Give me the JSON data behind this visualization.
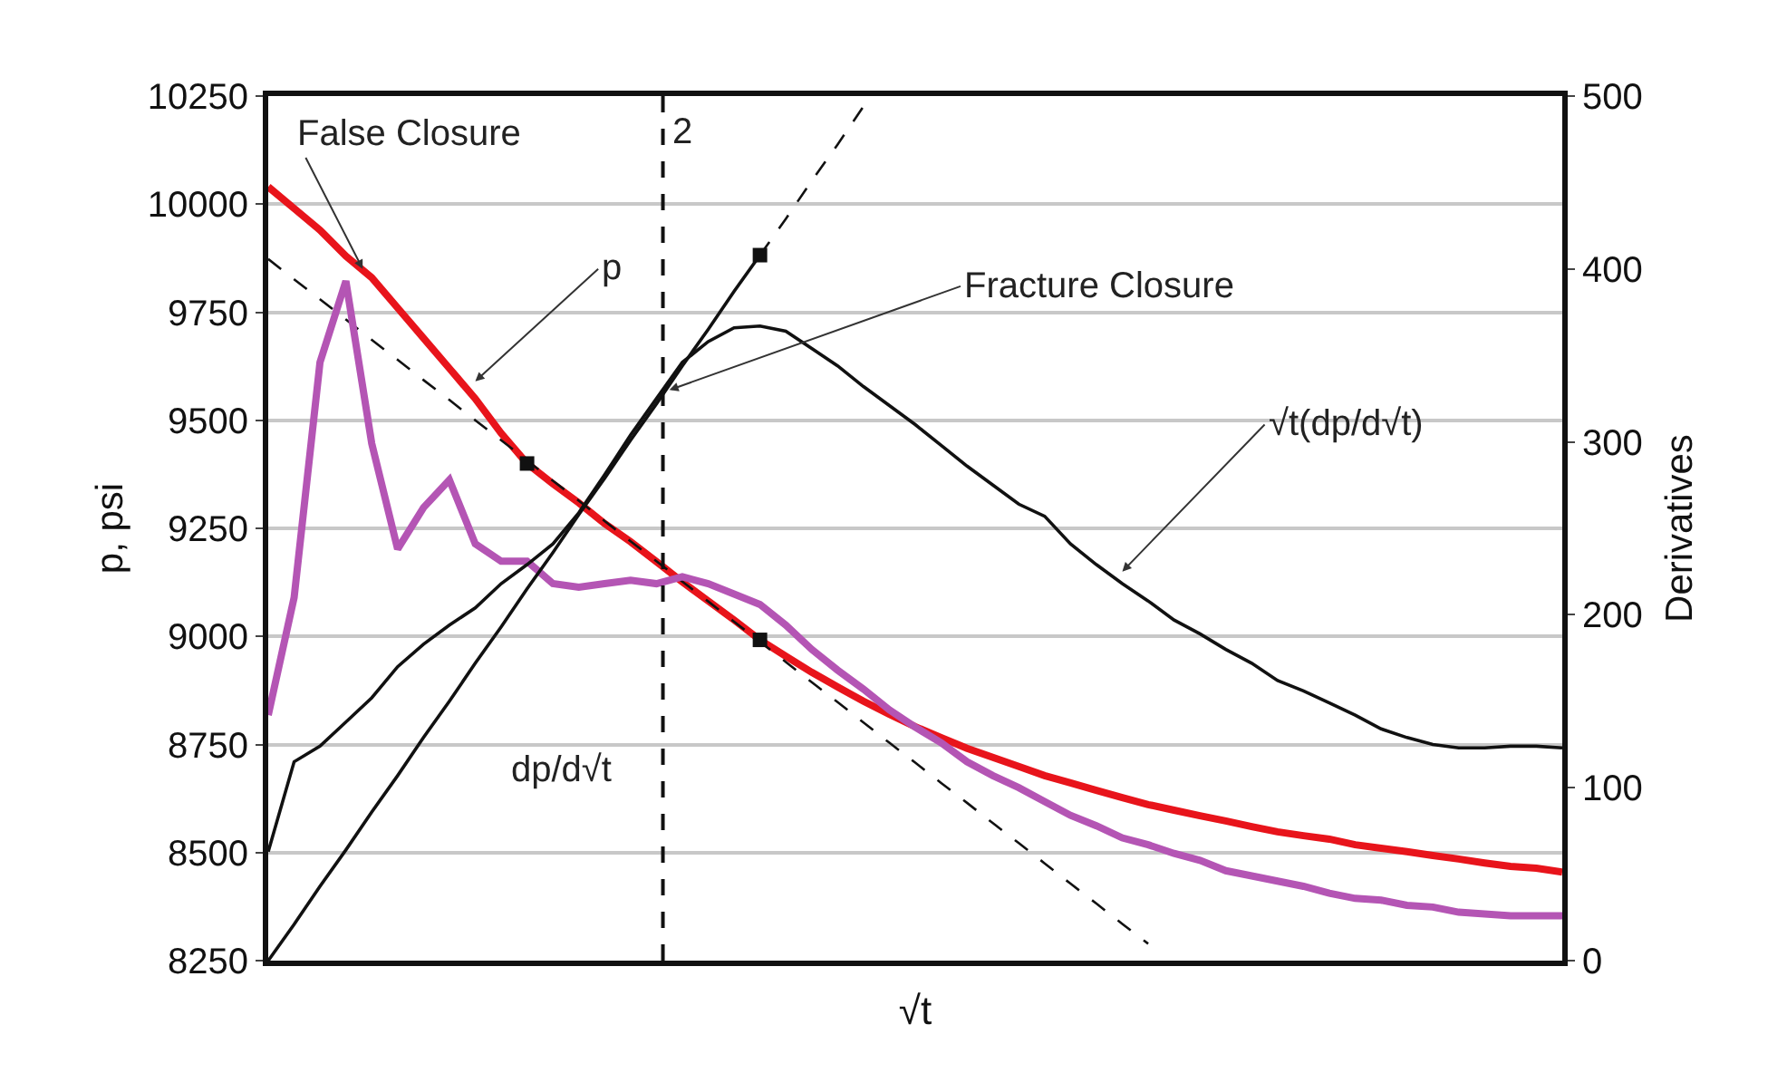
{
  "chart_data": {
    "type": "line",
    "xlabel": "√t",
    "ylabel": "p, psi",
    "y2label": "Derivatives",
    "categories": [
      null,
      null,
      null,
      null,
      null,
      null,
      null,
      null,
      null,
      null,
      null,
      null,
      null,
      null,
      null,
      null,
      null,
      null,
      null,
      null,
      null,
      null,
      null,
      null,
      null,
      null,
      null,
      null,
      null,
      null,
      null,
      null,
      null,
      null,
      null,
      null,
      null,
      null,
      null,
      null,
      null,
      null,
      null,
      null,
      null,
      null,
      null,
      null,
      null,
      null,
      null
    ],
    "series": [
      {
        "color": "#e8141b",
        "line_style": "solid",
        "values": [
          10040,
          9990,
          9940,
          9880,
          9830,
          9760,
          9690,
          9620,
          9550,
          9470,
          9400,
          9353,
          9309,
          9261,
          9219,
          9173,
          9126,
          9082,
          9038,
          8992,
          8954,
          8917,
          8883,
          8850,
          8820,
          8791,
          8766,
          8741,
          8720,
          8699,
          8678,
          8661,
          8644,
          8627,
          8611,
          8598,
          8585,
          8573,
          8560,
          8548,
          8539,
          8531,
          8518,
          8510,
          8502,
          8493,
          8485,
          8476,
          8468,
          8464,
          8455
        ]
      },
      {
        "color": "#b455b4",
        "axis": "y2",
        "line_style": "solid",
        "values": [
          142,
          210,
          346,
          393,
          299,
          238,
          262,
          278,
          241,
          231,
          231,
          218,
          216,
          218,
          220,
          218,
          222,
          218,
          212,
          206,
          194,
          180,
          168,
          157,
          145,
          135,
          126,
          115,
          107,
          100,
          92,
          84,
          78,
          71,
          67,
          62,
          58,
          52,
          49,
          46,
          43,
          39,
          36,
          35,
          32,
          31,
          28,
          27,
          26,
          26,
          26
        ]
      },
      {
        "type": "line",
        "color": "#111111",
        "axis": "y2",
        "line_style": "solid",
        "values": [
          63,
          115,
          124,
          138,
          152,
          170,
          183,
          194,
          204,
          218,
          229,
          241,
          259,
          281,
          304,
          325,
          346,
          358,
          366,
          367,
          364,
          354,
          344,
          332,
          321,
          310,
          298,
          286,
          275,
          264,
          257,
          241,
          229,
          218,
          208,
          197,
          189,
          180,
          172,
          162,
          156,
          149,
          142,
          134,
          129,
          125,
          123,
          123,
          124,
          124,
          123
        ]
      },
      {
        "type": "line",
        "color": "#111111",
        "axis": "y2",
        "line_style": "solid",
        "values": [
          0,
          21,
          43,
          64,
          86,
          107,
          129,
          150,
          172,
          193,
          215,
          236,
          258,
          279,
          301,
          322,
          344,
          365,
          387,
          408,
          null,
          null,
          null,
          null,
          null,
          null,
          null,
          null,
          null,
          null,
          null,
          null,
          null,
          null,
          null,
          null,
          null,
          null,
          null,
          null,
          null,
          null,
          null,
          null,
          null,
          null,
          null,
          null,
          null,
          null,
          null
        ]
      },
      {
        "type": "line",
        "color": "#111111",
        "axis": "y2",
        "line_style": "dashed",
        "values": [
          null,
          null,
          null,
          null,
          null,
          null,
          null,
          null,
          null,
          null,
          null,
          null,
          null,
          null,
          null,
          null,
          null,
          null,
          null,
          408,
          429,
          451,
          472,
          494,
          null,
          null,
          null,
          null,
          null,
          null,
          null,
          null,
          null,
          null,
          null,
          null,
          null,
          null,
          null,
          null,
          null,
          null,
          null,
          null,
          null,
          null,
          null,
          null,
          null,
          null,
          null
        ]
      },
      {
        "type": "line",
        "color": "#111111",
        "line_style": "dashed",
        "values": [
          9873,
          9826,
          9780,
          9733,
          9686,
          9640,
          9593,
          9547,
          9500,
          9454,
          9407,
          9360,
          9314,
          9267,
          9220,
          9174,
          9127,
          9081,
          9034,
          8988,
          8941,
          8894,
          8848,
          8801,
          8754,
          8708,
          8661,
          8615,
          8568,
          8522,
          8475,
          8428,
          8382,
          8335,
          8289,
          null,
          null,
          null,
          null,
          null,
          null,
          null,
          null,
          null,
          null,
          null,
          null,
          null,
          null,
          null,
          null
        ]
      },
      {
        "type": "scatter",
        "color": "#111111",
        "marker": "square",
        "values": [
          null,
          null,
          null,
          null,
          null,
          null,
          null,
          null,
          null,
          null,
          9400,
          null,
          null,
          null,
          null,
          null,
          null,
          null,
          null,
          8992,
          null,
          null,
          null,
          null,
          null,
          null,
          null,
          null,
          null,
          null,
          null,
          null,
          null,
          null,
          null,
          null,
          null,
          null,
          null,
          null,
          null,
          null,
          null,
          null,
          null,
          null,
          null,
          null,
          null,
          null,
          null
        ]
      },
      {
        "type": "scatter",
        "color": "#111111",
        "marker": "square",
        "axis": "y2",
        "values": [
          null,
          null,
          null,
          null,
          null,
          null,
          null,
          null,
          null,
          null,
          null,
          null,
          null,
          null,
          null,
          null,
          null,
          null,
          null,
          408,
          null,
          null,
          null,
          null,
          null,
          null,
          null,
          null,
          null,
          null,
          null,
          null,
          null,
          null,
          null,
          null,
          null,
          null,
          null,
          null,
          null,
          null,
          null,
          null,
          null,
          null,
          null,
          null,
          null,
          null,
          null
        ]
      }
    ],
    "ylim": [
      8250,
      10250
    ],
    "yticks": [
      8250,
      8500,
      8750,
      9000,
      9250,
      9500,
      9750,
      10000,
      10250
    ],
    "y2lim": [
      0,
      500
    ],
    "y2ticks": [
      0,
      100,
      200,
      300,
      400,
      500
    ],
    "annotations": [
      "False Closure",
      "p",
      "Fracture Closure",
      "√t(dp/d√t)",
      "dp/d√t",
      "2"
    ],
    "grid": "y",
    "tick_labels": "y"
  }
}
